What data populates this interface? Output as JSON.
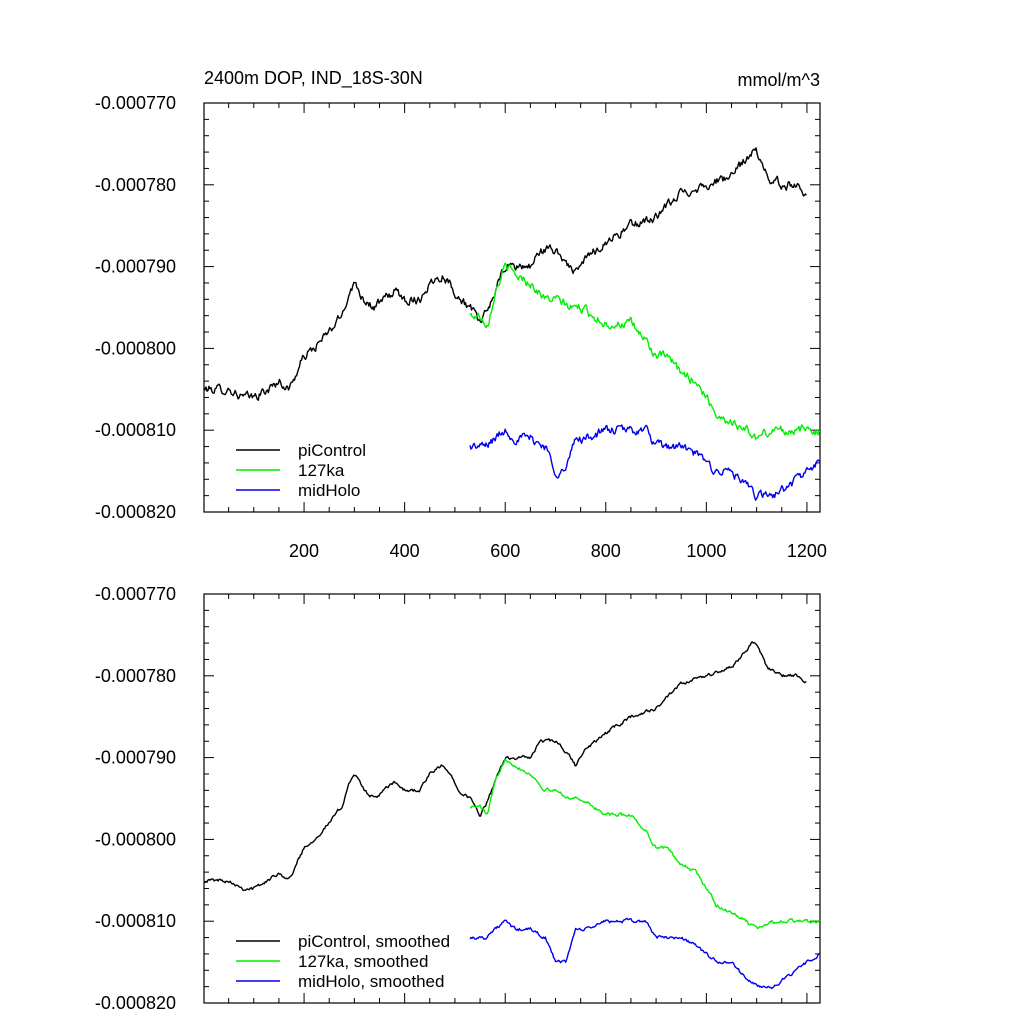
{
  "colors": {
    "piControl": "#000000",
    "ka127": "#00ee00",
    "midHolo": "#0000ee"
  },
  "chart_data": [
    {
      "type": "line",
      "title": "2400m DOP, IND_18S-30N",
      "units": "mmol/m^3",
      "xlim": [
        1,
        1226
      ],
      "ylim": [
        -0.00082,
        -0.00077
      ],
      "xticks": [
        200,
        400,
        600,
        800,
        1000,
        1200
      ],
      "xtick_labels": [
        "200",
        "400",
        "600",
        "800",
        "1000",
        "1200"
      ],
      "yticks": [
        -0.00077,
        -0.00078,
        -0.00079,
        -0.0008,
        -0.00081,
        -0.00082
      ],
      "ytick_labels": [
        "-0.000770",
        "-0.000780",
        "-0.000790",
        "-0.000800",
        "-0.000810",
        "-0.000820"
      ],
      "legend_location": "bottom-left",
      "series": [
        {
          "name": "piControl",
          "color": "#000000",
          "noise": 4.5e-07,
          "x": [
            1,
            30,
            50,
            80,
            100,
            130,
            150,
            170,
            200,
            220,
            250,
            275,
            290,
            300,
            320,
            340,
            360,
            380,
            400,
            430,
            450,
            475,
            490,
            510,
            530,
            550,
            560,
            580,
            600,
            620,
            650,
            670,
            700,
            730,
            740,
            760,
            800,
            850,
            900,
            950,
            1000,
            1050,
            1090,
            1100,
            1120,
            1150,
            1180,
            1200
          ],
          "y": [
            -0.000805,
            -0.000805,
            -0.000805,
            -0.000806,
            -0.000806,
            -0.000805,
            -0.000804,
            -0.000805,
            -0.000801,
            -0.0008,
            -0.000798,
            -0.000796,
            -0.000793,
            -0.000792,
            -0.000794,
            -0.000795,
            -0.000794,
            -0.000793,
            -0.000794,
            -0.000794,
            -0.000792,
            -0.000791,
            -0.000792,
            -0.000794,
            -0.000795,
            -0.000797,
            -0.000796,
            -0.000793,
            -0.00079,
            -0.00079,
            -0.00079,
            -0.000788,
            -0.000788,
            -0.00079,
            -0.000791,
            -0.000789,
            -0.000787,
            -0.000785,
            -0.000784,
            -0.000781,
            -0.00078,
            -0.000779,
            -0.000776,
            -0.000776,
            -0.000779,
            -0.00078,
            -0.00078,
            -0.000781
          ]
        },
        {
          "name": "127ka",
          "color": "#00ee00",
          "noise": 4.5e-07,
          "x": [
            530,
            550,
            565,
            580,
            600,
            620,
            650,
            680,
            700,
            730,
            750,
            800,
            850,
            880,
            900,
            920,
            950,
            980,
            1000,
            1020,
            1050,
            1080,
            1100,
            1130,
            1160,
            1200,
            1226
          ],
          "y": [
            -0.000796,
            -0.000796,
            -0.000797,
            -0.000793,
            -0.00079,
            -0.000791,
            -0.000792,
            -0.000794,
            -0.000794,
            -0.000795,
            -0.000795,
            -0.000797,
            -0.000797,
            -0.000799,
            -0.000801,
            -0.000801,
            -0.000803,
            -0.000804,
            -0.000806,
            -0.000808,
            -0.000809,
            -0.00081,
            -0.000811,
            -0.00081,
            -0.00081,
            -0.00081,
            -0.00081
          ]
        },
        {
          "name": "midHolo",
          "color": "#0000ee",
          "noise": 4.5e-07,
          "x": [
            530,
            560,
            580,
            600,
            620,
            650,
            680,
            700,
            720,
            740,
            760,
            800,
            850,
            880,
            900,
            920,
            950,
            980,
            1000,
            1020,
            1050,
            1080,
            1100,
            1130,
            1160,
            1200,
            1226
          ],
          "y": [
            -0.000812,
            -0.000812,
            -0.000811,
            -0.00081,
            -0.000811,
            -0.000811,
            -0.000812,
            -0.000815,
            -0.000815,
            -0.000811,
            -0.000811,
            -0.00081,
            -0.00081,
            -0.00081,
            -0.000812,
            -0.000812,
            -0.000812,
            -0.000813,
            -0.000814,
            -0.000815,
            -0.000815,
            -0.000817,
            -0.000818,
            -0.000818,
            -0.000817,
            -0.000815,
            -0.000814
          ]
        }
      ]
    },
    {
      "type": "line",
      "title": "",
      "units": "",
      "xlim": [
        1,
        1226
      ],
      "ylim": [
        -0.00082,
        -0.00077
      ],
      "xticks": [
        200,
        400,
        600,
        800,
        1000,
        1200
      ],
      "xtick_labels": [],
      "yticks": [
        -0.00077,
        -0.00078,
        -0.00079,
        -0.0008,
        -0.00081,
        -0.00082
      ],
      "ytick_labels": [
        "-0.000770",
        "-0.000780",
        "-0.000790",
        "-0.000800",
        "-0.000810",
        "-0.000820"
      ],
      "legend_location": "bottom-left",
      "series": [
        {
          "name": "piControl, smoothed",
          "color": "#000000",
          "noise": 1.8e-07,
          "x": [
            1,
            30,
            50,
            80,
            100,
            130,
            150,
            170,
            200,
            220,
            250,
            275,
            290,
            300,
            320,
            340,
            360,
            380,
            400,
            430,
            450,
            475,
            490,
            510,
            530,
            550,
            560,
            580,
            600,
            620,
            650,
            670,
            700,
            730,
            740,
            760,
            800,
            850,
            900,
            950,
            1000,
            1050,
            1090,
            1100,
            1120,
            1150,
            1180,
            1200
          ],
          "y": [
            -0.000805,
            -0.000805,
            -0.000805,
            -0.000806,
            -0.000806,
            -0.000805,
            -0.000804,
            -0.000805,
            -0.000801,
            -0.0008,
            -0.000798,
            -0.000796,
            -0.000793,
            -0.000792,
            -0.000794,
            -0.000795,
            -0.000794,
            -0.000793,
            -0.000794,
            -0.000794,
            -0.000792,
            -0.000791,
            -0.000792,
            -0.000794,
            -0.000795,
            -0.000797,
            -0.000796,
            -0.000793,
            -0.00079,
            -0.00079,
            -0.00079,
            -0.000788,
            -0.000788,
            -0.00079,
            -0.000791,
            -0.000789,
            -0.000787,
            -0.000785,
            -0.000784,
            -0.000781,
            -0.00078,
            -0.000779,
            -0.000776,
            -0.000776,
            -0.000779,
            -0.00078,
            -0.00078,
            -0.000781
          ]
        },
        {
          "name": "127ka, smoothed",
          "color": "#00ee00",
          "noise": 1.8e-07,
          "x": [
            530,
            550,
            565,
            580,
            600,
            620,
            650,
            680,
            700,
            730,
            750,
            800,
            850,
            880,
            900,
            920,
            950,
            980,
            1000,
            1020,
            1050,
            1080,
            1100,
            1130,
            1160,
            1200,
            1226
          ],
          "y": [
            -0.000796,
            -0.000796,
            -0.000797,
            -0.000793,
            -0.00079,
            -0.000791,
            -0.000792,
            -0.000794,
            -0.000794,
            -0.000795,
            -0.000795,
            -0.000797,
            -0.000797,
            -0.000799,
            -0.000801,
            -0.000801,
            -0.000803,
            -0.000804,
            -0.000806,
            -0.000808,
            -0.000809,
            -0.00081,
            -0.000811,
            -0.00081,
            -0.00081,
            -0.00081,
            -0.00081
          ]
        },
        {
          "name": "midHolo, smoothed",
          "color": "#0000ee",
          "noise": 1.8e-07,
          "x": [
            530,
            560,
            580,
            600,
            620,
            650,
            680,
            700,
            720,
            740,
            760,
            800,
            850,
            880,
            900,
            920,
            950,
            980,
            1000,
            1020,
            1050,
            1080,
            1100,
            1130,
            1160,
            1200,
            1226
          ],
          "y": [
            -0.000812,
            -0.000812,
            -0.000811,
            -0.00081,
            -0.000811,
            -0.000811,
            -0.000812,
            -0.000815,
            -0.000815,
            -0.000811,
            -0.000811,
            -0.00081,
            -0.00081,
            -0.00081,
            -0.000812,
            -0.000812,
            -0.000812,
            -0.000813,
            -0.000814,
            -0.000815,
            -0.000815,
            -0.000817,
            -0.000818,
            -0.000818,
            -0.000817,
            -0.000815,
            -0.000814
          ]
        }
      ]
    }
  ]
}
